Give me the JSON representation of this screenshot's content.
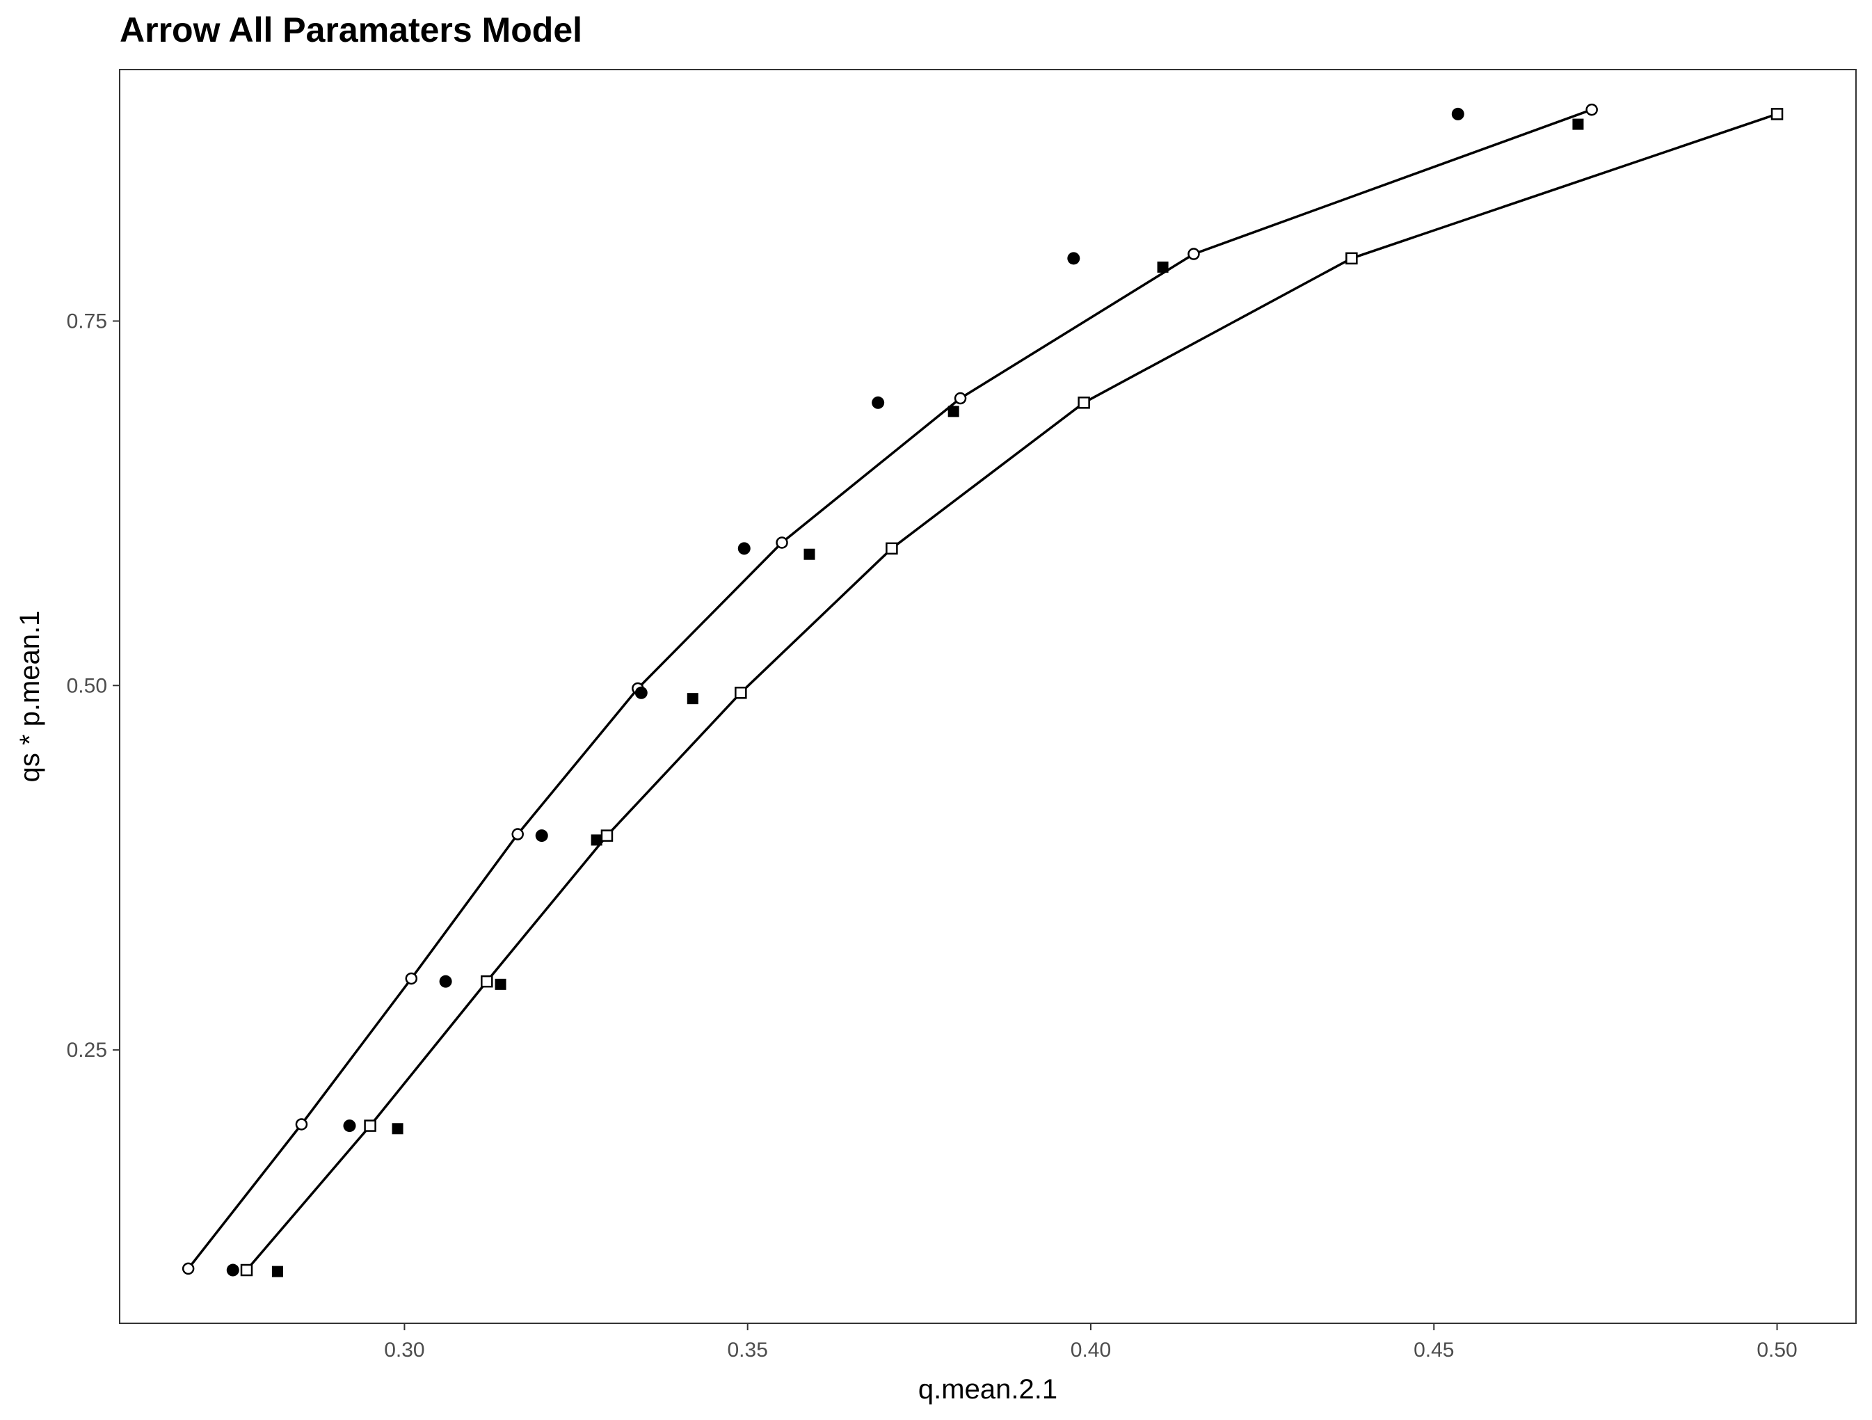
{
  "chart_data": {
    "type": "scatter",
    "title": "Arrow  All Paramaters Model",
    "xlabel": "q.mean.2.1",
    "ylabel": "qs * p.mean.1",
    "xlim": [
      0.2585,
      0.5115
    ],
    "ylim": [
      0.0625,
      0.9225
    ],
    "xticks": [
      0.3,
      0.35,
      0.4,
      0.45,
      0.5
    ],
    "xtick_labels": [
      "0.30",
      "0.35",
      "0.40",
      "0.45",
      "0.50"
    ],
    "yticks": [
      0.25,
      0.5,
      0.75
    ],
    "ytick_labels": [
      "0.25",
      "0.50",
      "0.75"
    ],
    "grid": false,
    "legend": "none",
    "series": [
      {
        "marker": "open-circle",
        "line": true,
        "x": [
          0.2685,
          0.285,
          0.301,
          0.3165,
          0.334,
          0.355,
          0.381,
          0.415,
          0.473
        ],
        "y": [
          0.1,
          0.199,
          0.299,
          0.398,
          0.498,
          0.598,
          0.697,
          0.796,
          0.895
        ]
      },
      {
        "marker": "open-square",
        "line": true,
        "x": [
          0.277,
          0.295,
          0.312,
          0.3295,
          0.349,
          0.371,
          0.399,
          0.438,
          0.5
        ],
        "y": [
          0.099,
          0.198,
          0.297,
          0.397,
          0.495,
          0.594,
          0.694,
          0.793,
          0.892
        ]
      },
      {
        "marker": "filled-circle",
        "line": false,
        "x": [
          0.275,
          0.292,
          0.306,
          0.32,
          0.3345,
          0.3495,
          0.369,
          0.3975,
          0.4535
        ],
        "y": [
          0.099,
          0.198,
          0.297,
          0.397,
          0.495,
          0.594,
          0.694,
          0.793,
          0.892
        ]
      },
      {
        "marker": "filled-square",
        "line": false,
        "x": [
          0.2815,
          0.299,
          0.314,
          0.328,
          0.342,
          0.359,
          0.38,
          0.4105,
          0.471
        ],
        "y": [
          0.098,
          0.196,
          0.295,
          0.394,
          0.491,
          0.59,
          0.688,
          0.787,
          0.885
        ]
      }
    ]
  }
}
